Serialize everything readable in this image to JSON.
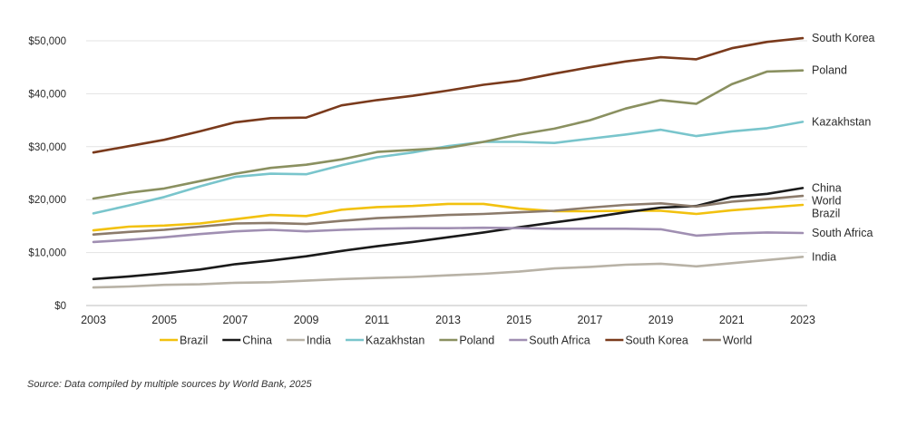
{
  "chart_data": {
    "type": "line",
    "x": [
      2003,
      2004,
      2005,
      2006,
      2007,
      2008,
      2009,
      2010,
      2011,
      2012,
      2013,
      2014,
      2015,
      2016,
      2017,
      2018,
      2019,
      2020,
      2021,
      2022,
      2023
    ],
    "x_ticks": [
      "2003",
      "2005",
      "2007",
      "2009",
      "2011",
      "2013",
      "2015",
      "2017",
      "2019",
      "2021",
      "2023"
    ],
    "y_ticks": [
      "$0",
      "$10,000",
      "$20,000",
      "$30,000",
      "$40,000",
      "$50,000"
    ],
    "ylim": [
      0,
      50000
    ],
    "grid": "horizontal",
    "legend_position": "bottom",
    "series": [
      {
        "name": "Brazil",
        "color": "#f2c10f",
        "values": [
          14200,
          14900,
          15100,
          15500,
          16300,
          17100,
          16900,
          18100,
          18600,
          18800,
          19200,
          19200,
          18300,
          17800,
          17800,
          17900,
          17900,
          17300,
          18000,
          18500,
          19000
        ]
      },
      {
        "name": "China",
        "color": "#1a1a1a",
        "values": [
          5000,
          5500,
          6100,
          6800,
          7800,
          8500,
          9300,
          10300,
          11200,
          12000,
          12900,
          13800,
          14800,
          15700,
          16600,
          17600,
          18500,
          18800,
          20500,
          21100,
          22200
        ]
      },
      {
        "name": "India",
        "color": "#b8b2a6",
        "values": [
          3400,
          3600,
          3900,
          4000,
          4300,
          4400,
          4700,
          5000,
          5200,
          5400,
          5700,
          6000,
          6400,
          7000,
          7300,
          7700,
          7900,
          7400,
          8000,
          8600,
          9200
        ]
      },
      {
        "name": "Kazakhstan",
        "color": "#79c5cc",
        "values": [
          17400,
          18900,
          20500,
          22500,
          24300,
          24900,
          24800,
          26500,
          28000,
          28900,
          30100,
          30900,
          30900,
          30700,
          31500,
          32300,
          33200,
          32000,
          32900,
          33500,
          34700
        ]
      },
      {
        "name": "Poland",
        "color": "#8a9060",
        "values": [
          20200,
          21300,
          22100,
          23500,
          24900,
          26000,
          26600,
          27600,
          29000,
          29400,
          29800,
          30900,
          32300,
          33400,
          35000,
          37200,
          38800,
          38100,
          41800,
          44200,
          44400
        ]
      },
      {
        "name": "South Africa",
        "color": "#a08fb2",
        "values": [
          12000,
          12400,
          12900,
          13500,
          14000,
          14300,
          14000,
          14300,
          14500,
          14600,
          14600,
          14700,
          14600,
          14500,
          14500,
          14500,
          14400,
          13200,
          13600,
          13800,
          13700
        ]
      },
      {
        "name": "South Korea",
        "color": "#7a3a1c",
        "values": [
          28900,
          30100,
          31300,
          32900,
          34600,
          35400,
          35500,
          37800,
          38800,
          39600,
          40600,
          41700,
          42500,
          43800,
          45000,
          46100,
          46900,
          46500,
          48600,
          49800,
          50500
        ]
      },
      {
        "name": "World",
        "color": "#8c7b6b",
        "values": [
          13400,
          13900,
          14300,
          14900,
          15500,
          15600,
          15400,
          16000,
          16500,
          16800,
          17100,
          17300,
          17600,
          17900,
          18500,
          19000,
          19300,
          18700,
          19600,
          20100,
          20700
        ]
      }
    ],
    "end_labels": [
      {
        "series": "South Korea",
        "text": "South Korea"
      },
      {
        "series": "Poland",
        "text": "Poland"
      },
      {
        "series": "Kazakhstan",
        "text": "Kazakhstan"
      },
      {
        "series": "China",
        "text": "China"
      },
      {
        "series": "World",
        "text": "World"
      },
      {
        "series": "Brazil",
        "text": "Brazil"
      },
      {
        "series": "South Africa",
        "text": "South Africa"
      },
      {
        "series": "India",
        "text": "India"
      }
    ]
  },
  "source_note": "Source: Data compiled by multiple sources by World Bank, 2025"
}
